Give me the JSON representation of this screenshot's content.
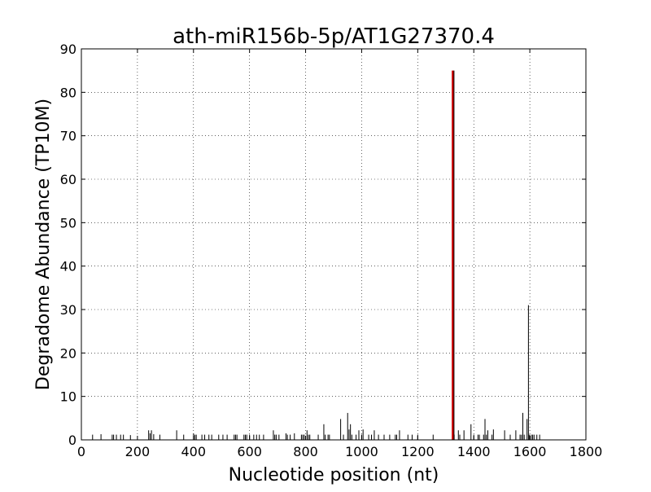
{
  "chart_data": {
    "type": "bar",
    "title": "ath-miR156b-5p/AT1G27370.4",
    "xlabel": "Nucleotide position (nt)",
    "ylabel": "Degradome Abundance (TP10M)",
    "xlim": [
      0,
      1800
    ],
    "ylim": [
      0,
      90
    ],
    "xticks": [
      0,
      200,
      400,
      600,
      800,
      1000,
      1200,
      1400,
      1600,
      1800
    ],
    "yticks": [
      0,
      10,
      20,
      30,
      40,
      50,
      60,
      70,
      80,
      90
    ],
    "grid": true,
    "colors": {
      "background": "#ffffff",
      "axes": "#000000",
      "series": "#000000",
      "target_site": "#cc0000"
    },
    "series": [
      {
        "x": [
          40,
          70,
          110,
          115,
          125,
          140,
          150,
          175,
          240,
          245,
          250,
          258,
          280,
          340,
          365,
          400,
          405,
          410,
          430,
          440,
          455,
          465,
          490,
          505,
          520,
          545,
          550,
          555,
          580,
          585,
          590,
          600,
          615,
          625,
          635,
          650,
          685,
          690,
          695,
          705,
          730,
          735,
          745,
          760,
          785,
          790,
          795,
          805,
          810,
          815,
          845,
          865,
          870,
          880,
          885,
          925,
          935,
          950,
          955,
          960,
          965,
          980,
          990,
          1000,
          1005,
          1025,
          1035,
          1045,
          1060,
          1080,
          1100,
          1120,
          1125,
          1135,
          1165,
          1180,
          1200,
          1255,
          1330,
          1345,
          1350,
          1365,
          1390,
          1400,
          1415,
          1420,
          1435,
          1440,
          1445,
          1450,
          1465,
          1470,
          1510,
          1530,
          1550,
          1565,
          1570,
          1575,
          1580,
          1590,
          1595,
          1598,
          1605,
          1610,
          1615,
          1625,
          1635
        ],
        "values": [
          1.2,
          1.3,
          1.2,
          1.2,
          1.2,
          1.2,
          1.2,
          1.1,
          2.2,
          1.5,
          2.2,
          1.3,
          1.2,
          2.2,
          1.2,
          1.5,
          1.2,
          1.2,
          1.2,
          1.2,
          1.2,
          1.2,
          1.2,
          1.2,
          1.2,
          1.2,
          1.2,
          1.2,
          1.2,
          1.2,
          1.2,
          1.2,
          1.2,
          1.2,
          1.2,
          1.2,
          2.2,
          1.2,
          1.2,
          1.2,
          1.5,
          1.2,
          1.2,
          1.5,
          1.2,
          1.2,
          1.2,
          2.2,
          1.2,
          1.2,
          1.2,
          3.6,
          1.2,
          1.2,
          1.2,
          4.8,
          1.2,
          6.2,
          2.4,
          3.6,
          1.2,
          1.2,
          2.2,
          1.2,
          2.4,
          1.2,
          1.2,
          2.2,
          1.2,
          1.2,
          1.2,
          1.2,
          1.2,
          2.2,
          1.2,
          1.2,
          1.2,
          1.2,
          1.2,
          2.2,
          1.2,
          2.2,
          3.6,
          1.2,
          1.2,
          1.2,
          1.2,
          4.8,
          1.2,
          2.2,
          1.2,
          2.4,
          2.2,
          1.2,
          2.2,
          1.2,
          1.2,
          6.2,
          1.2,
          4.8,
          31.0,
          1.2,
          1.2,
          1.2,
          1.2,
          1.2,
          1.2
        ]
      }
    ],
    "target_site": {
      "x": 1325,
      "value": 85
    }
  }
}
